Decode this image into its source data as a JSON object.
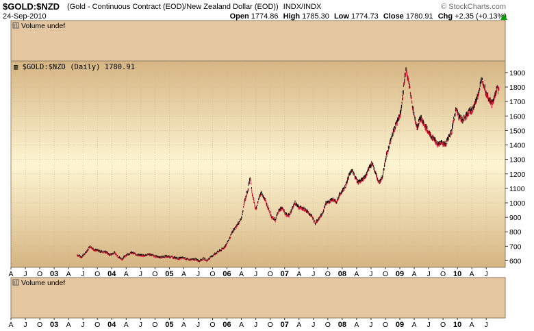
{
  "header": {
    "symbol": "$GOLD:$NZD",
    "description": "(Gold - Continuous Contract (EOD)/New Zealand Dollar (EOD))",
    "exchange": "INDX/INDX",
    "date": "24-Sep-2010",
    "logo": "© StockCharts.com",
    "open_label": "Open",
    "open_value": "1774.86",
    "high_label": "High",
    "high_value": "1785.30",
    "low_label": "Low",
    "low_value": "1774.73",
    "close_label": "Close",
    "close_value": "1780.91",
    "chg_label": "Chg",
    "chg_value": "+2.35 (+0.13%)",
    "chg_arrow_icon": "up-triangle-icon",
    "chg_color": "#00a000"
  },
  "panels": {
    "volume_top_label": "Volume undef",
    "volume_bottom_label": "Volume undef",
    "price_label": "$GOLD:$NZD (Daily) 1780.91"
  },
  "colors": {
    "gradient_edge": "#d6b583",
    "gradient_center": "#fdf5d2",
    "volume_panel": "#e4c7a0",
    "up_bar": "#000000",
    "down_bar": "#e0002a"
  },
  "chart_data": {
    "type": "ohlc",
    "title": "$GOLD:$NZD (Daily) 1780.91",
    "y_ticks": [
      600,
      700,
      800,
      900,
      1000,
      1100,
      1200,
      1300,
      1400,
      1500,
      1600,
      1700,
      1800,
      1900
    ],
    "ylim": [
      555,
      1980
    ],
    "x_range": [
      2002.25,
      2010.83
    ],
    "x_month_labels": [
      {
        "t": 2002.25,
        "label": "A"
      },
      {
        "t": 2002.5,
        "label": "J"
      },
      {
        "t": 2002.75,
        "label": "O"
      },
      {
        "t": 2003.0,
        "label": "03"
      },
      {
        "t": 2003.25,
        "label": "A"
      },
      {
        "t": 2003.5,
        "label": "J"
      },
      {
        "t": 2003.75,
        "label": "O"
      },
      {
        "t": 2004.0,
        "label": "04"
      },
      {
        "t": 2004.25,
        "label": "A"
      },
      {
        "t": 2004.5,
        "label": "J"
      },
      {
        "t": 2004.75,
        "label": "O"
      },
      {
        "t": 2005.0,
        "label": "05"
      },
      {
        "t": 2005.25,
        "label": "A"
      },
      {
        "t": 2005.5,
        "label": "J"
      },
      {
        "t": 2005.75,
        "label": "O"
      },
      {
        "t": 2006.0,
        "label": "06"
      },
      {
        "t": 2006.25,
        "label": "A"
      },
      {
        "t": 2006.5,
        "label": "J"
      },
      {
        "t": 2006.75,
        "label": "O"
      },
      {
        "t": 2007.0,
        "label": "07"
      },
      {
        "t": 2007.25,
        "label": "A"
      },
      {
        "t": 2007.5,
        "label": "J"
      },
      {
        "t": 2007.75,
        "label": "O"
      },
      {
        "t": 2008.0,
        "label": "08"
      },
      {
        "t": 2008.25,
        "label": "A"
      },
      {
        "t": 2008.5,
        "label": "J"
      },
      {
        "t": 2008.75,
        "label": "O"
      },
      {
        "t": 2009.0,
        "label": "09"
      },
      {
        "t": 2009.25,
        "label": "A"
      },
      {
        "t": 2009.5,
        "label": "J"
      },
      {
        "t": 2009.75,
        "label": "O"
      },
      {
        "t": 2010.0,
        "label": "10"
      },
      {
        "t": 2010.25,
        "label": "A"
      },
      {
        "t": 2010.5,
        "label": "J"
      }
    ],
    "year_labels": [
      "03",
      "04",
      "05",
      "06",
      "07",
      "08",
      "09",
      "10"
    ],
    "series": [
      {
        "points": [
          [
            2003.4,
            640
          ],
          [
            2003.47,
            625
          ],
          [
            2003.55,
            655
          ],
          [
            2003.62,
            700
          ],
          [
            2003.7,
            675
          ],
          [
            2003.8,
            665
          ],
          [
            2003.9,
            660
          ],
          [
            2003.96,
            640
          ],
          [
            2004.05,
            655
          ],
          [
            2004.12,
            625
          ],
          [
            2004.18,
            610
          ],
          [
            2004.25,
            640
          ],
          [
            2004.35,
            655
          ],
          [
            2004.45,
            640
          ],
          [
            2004.55,
            635
          ],
          [
            2004.65,
            645
          ],
          [
            2004.75,
            630
          ],
          [
            2004.85,
            625
          ],
          [
            2004.95,
            630
          ],
          [
            2005.05,
            625
          ],
          [
            2005.15,
            615
          ],
          [
            2005.25,
            620
          ],
          [
            2005.35,
            605
          ],
          [
            2005.45,
            610
          ],
          [
            2005.52,
            600
          ],
          [
            2005.6,
            615
          ],
          [
            2005.65,
            600
          ],
          [
            2005.72,
            625
          ],
          [
            2005.8,
            650
          ],
          [
            2005.88,
            670
          ],
          [
            2005.95,
            690
          ],
          [
            2006.0,
            720
          ],
          [
            2006.05,
            760
          ],
          [
            2006.1,
            800
          ],
          [
            2006.15,
            830
          ],
          [
            2006.2,
            860
          ],
          [
            2006.26,
            900
          ],
          [
            2006.3,
            1000
          ],
          [
            2006.34,
            1060
          ],
          [
            2006.37,
            1100
          ],
          [
            2006.4,
            1180
          ],
          [
            2006.44,
            1060
          ],
          [
            2006.5,
            950
          ],
          [
            2006.56,
            1040
          ],
          [
            2006.6,
            1070
          ],
          [
            2006.66,
            1020
          ],
          [
            2006.72,
            960
          ],
          [
            2006.78,
            900
          ],
          [
            2006.84,
            880
          ],
          [
            2006.9,
            950
          ],
          [
            2006.96,
            960
          ],
          [
            2007.02,
            920
          ],
          [
            2007.08,
            910
          ],
          [
            2007.12,
            950
          ],
          [
            2007.18,
            1000
          ],
          [
            2007.25,
            970
          ],
          [
            2007.32,
            960
          ],
          [
            2007.4,
            940
          ],
          [
            2007.48,
            900
          ],
          [
            2007.53,
            860
          ],
          [
            2007.6,
            890
          ],
          [
            2007.66,
            930
          ],
          [
            2007.72,
            1000
          ],
          [
            2007.78,
            1010
          ],
          [
            2007.84,
            1030
          ],
          [
            2007.9,
            1000
          ],
          [
            2007.95,
            1050
          ],
          [
            2008.0,
            1080
          ],
          [
            2008.06,
            1120
          ],
          [
            2008.12,
            1190
          ],
          [
            2008.17,
            1230
          ],
          [
            2008.22,
            1180
          ],
          [
            2008.28,
            1140
          ],
          [
            2008.34,
            1160
          ],
          [
            2008.4,
            1180
          ],
          [
            2008.46,
            1230
          ],
          [
            2008.52,
            1280
          ],
          [
            2008.58,
            1200
          ],
          [
            2008.64,
            1140
          ],
          [
            2008.7,
            1180
          ],
          [
            2008.76,
            1320
          ],
          [
            2008.82,
            1400
          ],
          [
            2008.88,
            1480
          ],
          [
            2008.92,
            1530
          ],
          [
            2008.96,
            1560
          ],
          [
            2009.0,
            1600
          ],
          [
            2009.04,
            1700
          ],
          [
            2009.08,
            1850
          ],
          [
            2009.11,
            1920
          ],
          [
            2009.14,
            1850
          ],
          [
            2009.18,
            1780
          ],
          [
            2009.22,
            1660
          ],
          [
            2009.26,
            1590
          ],
          [
            2009.3,
            1520
          ],
          [
            2009.36,
            1590
          ],
          [
            2009.42,
            1540
          ],
          [
            2009.48,
            1500
          ],
          [
            2009.54,
            1460
          ],
          [
            2009.6,
            1440
          ],
          [
            2009.66,
            1400
          ],
          [
            2009.72,
            1420
          ],
          [
            2009.78,
            1400
          ],
          [
            2009.84,
            1440
          ],
          [
            2009.9,
            1490
          ],
          [
            2009.94,
            1580
          ],
          [
            2009.98,
            1650
          ],
          [
            2010.02,
            1600
          ],
          [
            2010.08,
            1570
          ],
          [
            2010.14,
            1590
          ],
          [
            2010.2,
            1630
          ],
          [
            2010.26,
            1640
          ],
          [
            2010.32,
            1700
          ],
          [
            2010.38,
            1780
          ],
          [
            2010.42,
            1850
          ],
          [
            2010.46,
            1820
          ],
          [
            2010.5,
            1760
          ],
          [
            2010.55,
            1720
          ],
          [
            2010.6,
            1680
          ],
          [
            2010.64,
            1720
          ],
          [
            2010.68,
            1790
          ],
          [
            2010.72,
            1780
          ]
        ]
      }
    ]
  }
}
